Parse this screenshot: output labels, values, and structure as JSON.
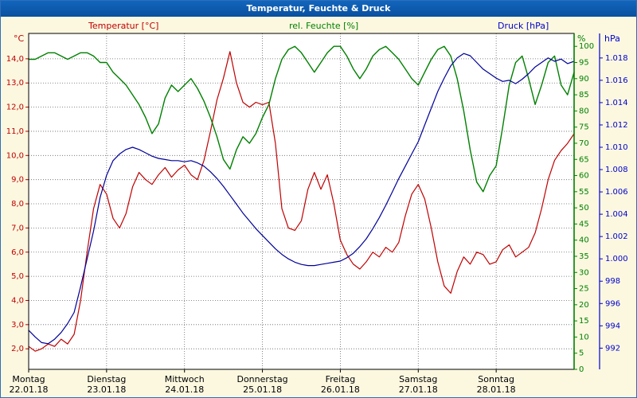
{
  "title_bar": {
    "title": "Temperatur, Feuchte & Druck"
  },
  "legend": {
    "temperature": "Temperatur [°C]",
    "humidity": "rel. Feuchte [%]",
    "pressure": "Druck [hPa]"
  },
  "colors": {
    "temperature": "#c00000",
    "humidity": "#008000",
    "pressure": "#0000cc",
    "pressure_line": "#000099",
    "title_bar_bg": "#0a58ac",
    "page_background": "#fcf8e0",
    "plot_background": "#ffffff",
    "grid": "#666666",
    "axis": "#000000"
  },
  "axes": {
    "temperature": {
      "unit": "°C",
      "scale": {
        "min": 1.15,
        "max": 15.05
      },
      "ticks": [
        {
          "v": 14,
          "label": "14,0"
        },
        {
          "v": 13,
          "label": "13,0"
        },
        {
          "v": 12,
          "label": "12,0"
        },
        {
          "v": 11,
          "label": "11,0"
        },
        {
          "v": 10,
          "label": "10,0"
        },
        {
          "v": 9,
          "label": "9,0"
        },
        {
          "v": 8,
          "label": "8,0"
        },
        {
          "v": 7,
          "label": "7,0"
        },
        {
          "v": 6,
          "label": "6,0"
        },
        {
          "v": 5,
          "label": "5,0"
        },
        {
          "v": 4,
          "label": "4,0"
        },
        {
          "v": 3,
          "label": "3,0"
        },
        {
          "v": 2,
          "label": "2,0"
        }
      ]
    },
    "humidity": {
      "unit": "%",
      "scale": {
        "min": 0,
        "max": 104
      },
      "ticks": [
        {
          "v": 100,
          "label": "100"
        },
        {
          "v": 95,
          "label": "95"
        },
        {
          "v": 90,
          "label": "90"
        },
        {
          "v": 85,
          "label": "85"
        },
        {
          "v": 80,
          "label": "80"
        },
        {
          "v": 75,
          "label": "75"
        },
        {
          "v": 70,
          "label": "70"
        },
        {
          "v": 65,
          "label": "65"
        },
        {
          "v": 60,
          "label": "60"
        },
        {
          "v": 55,
          "label": "55"
        },
        {
          "v": 50,
          "label": "50"
        },
        {
          "v": 45,
          "label": "45"
        },
        {
          "v": 40,
          "label": "40"
        },
        {
          "v": 35,
          "label": "35"
        },
        {
          "v": 30,
          "label": "30"
        },
        {
          "v": 25,
          "label": "25"
        },
        {
          "v": 20,
          "label": "20"
        },
        {
          "v": 15,
          "label": "15"
        },
        {
          "v": 10,
          "label": "10"
        },
        {
          "v": 5,
          "label": "5"
        },
        {
          "v": 0,
          "label": "0"
        }
      ]
    },
    "pressure": {
      "unit": "hPa",
      "scale": {
        "min": 990.1,
        "max": 1020.2
      },
      "ticks": [
        {
          "v": 1018,
          "label": "1.018"
        },
        {
          "v": 1016,
          "label": "1.016"
        },
        {
          "v": 1014,
          "label": "1.014"
        },
        {
          "v": 1012,
          "label": "1.012"
        },
        {
          "v": 1010,
          "label": "1.010"
        },
        {
          "v": 1008,
          "label": "1.008"
        },
        {
          "v": 1006,
          "label": "1.006"
        },
        {
          "v": 1004,
          "label": "1.004"
        },
        {
          "v": 1002,
          "label": "1.002"
        },
        {
          "v": 1000,
          "label": "1.000"
        },
        {
          "v": 998,
          "label": "998"
        },
        {
          "v": 996,
          "label": "996"
        },
        {
          "v": 994,
          "label": "994"
        },
        {
          "v": 992,
          "label": "992"
        }
      ]
    },
    "x": {
      "days": [
        {
          "name": "Montag",
          "date": "22.01.18"
        },
        {
          "name": "Dienstag",
          "date": "23.01.18"
        },
        {
          "name": "Mittwoch",
          "date": "24.01.18"
        },
        {
          "name": "Donnerstag",
          "date": "25.01.18"
        },
        {
          "name": "Freitag",
          "date": "26.01.18"
        },
        {
          "name": "Samstag",
          "date": "27.01.18"
        },
        {
          "name": "Sonntag",
          "date": "28.01.18"
        }
      ]
    }
  },
  "chart_data": {
    "type": "line",
    "title": "Temperatur, Feuchte & Druck",
    "x_unit": "hours from Montag 22.01.18 00:00",
    "x_step_hours": 2,
    "x_max_hours": 168,
    "x_tick_labels": [
      "Montag 22.01.18",
      "Dienstag 23.01.18",
      "Mittwoch 24.01.18",
      "Donnerstag 25.01.18",
      "Freitag 26.01.18",
      "Samstag 27.01.18",
      "Sonntag 28.01.18"
    ],
    "legend_position": "top",
    "grid": "dotted",
    "series": [
      {
        "name": "Temperatur [°C]",
        "axis": "temperature",
        "color": "#c00000",
        "axis_range": [
          2,
          14
        ],
        "values": [
          2.1,
          1.9,
          2.0,
          2.2,
          2.1,
          2.4,
          2.2,
          2.6,
          4.0,
          6.0,
          7.8,
          8.8,
          8.4,
          7.4,
          7.0,
          7.6,
          8.7,
          9.3,
          9.0,
          8.8,
          9.2,
          9.5,
          9.1,
          9.4,
          9.6,
          9.2,
          9.0,
          9.8,
          11.0,
          12.3,
          13.2,
          14.3,
          13.0,
          12.2,
          12.0,
          12.2,
          12.1,
          12.2,
          10.5,
          7.8,
          7.0,
          6.9,
          7.3,
          8.6,
          9.3,
          8.6,
          9.2,
          8.0,
          6.5,
          5.9,
          5.5,
          5.3,
          5.6,
          6.0,
          5.8,
          6.2,
          6.0,
          6.4,
          7.5,
          8.4,
          8.8,
          8.2,
          7.0,
          5.6,
          4.6,
          4.3,
          5.2,
          5.8,
          5.5,
          6.0,
          5.9,
          5.5,
          5.6,
          6.1,
          6.3,
          5.8,
          6.0,
          6.2,
          6.8,
          7.8,
          9.0,
          9.8,
          10.2,
          10.5,
          10.9
        ]
      },
      {
        "name": "rel. Feuchte [%]",
        "axis": "humidity",
        "color": "#008000",
        "axis_range": [
          0,
          100
        ],
        "values": [
          96,
          96,
          97,
          98,
          98,
          97,
          96,
          97,
          98,
          98,
          97,
          95,
          95,
          92,
          90,
          88,
          85,
          82,
          78,
          73,
          76,
          84,
          88,
          86,
          88,
          90,
          87,
          83,
          78,
          72,
          65,
          62,
          68,
          72,
          70,
          73,
          78,
          82,
          90,
          96,
          99,
          100,
          98,
          95,
          92,
          95,
          98,
          100,
          100,
          97,
          93,
          90,
          93,
          97,
          99,
          100,
          98,
          96,
          93,
          90,
          88,
          92,
          96,
          99,
          100,
          97,
          90,
          80,
          68,
          58,
          55,
          60,
          63,
          75,
          88,
          95,
          97,
          90,
          82,
          88,
          95,
          97,
          88,
          85,
          92
        ]
      },
      {
        "name": "Druck [hPa]",
        "axis": "pressure",
        "color": "#000099",
        "axis_range": [
          992,
          1018
        ],
        "values": [
          993.6,
          993.0,
          992.5,
          992.4,
          992.8,
          993.4,
          994.2,
          995.2,
          997.5,
          1000.0,
          1002.5,
          1005.5,
          1007.5,
          1008.8,
          1009.4,
          1009.8,
          1010.0,
          1009.8,
          1009.5,
          1009.2,
          1009.0,
          1008.9,
          1008.8,
          1008.8,
          1008.7,
          1008.8,
          1008.6,
          1008.3,
          1007.8,
          1007.2,
          1006.5,
          1005.7,
          1004.9,
          1004.1,
          1003.4,
          1002.7,
          1002.1,
          1001.5,
          1000.9,
          1000.4,
          1000.0,
          999.7,
          999.5,
          999.4,
          999.4,
          999.5,
          999.6,
          999.7,
          999.8,
          1000.1,
          1000.5,
          1001.1,
          1001.8,
          1002.7,
          1003.7,
          1004.8,
          1006.0,
          1007.2,
          1008.3,
          1009.4,
          1010.5,
          1012.0,
          1013.5,
          1015.0,
          1016.2,
          1017.3,
          1018.0,
          1018.4,
          1018.2,
          1017.6,
          1017.0,
          1016.6,
          1016.2,
          1015.9,
          1016.0,
          1015.7,
          1016.1,
          1016.6,
          1017.2,
          1017.6,
          1018.0,
          1017.7,
          1017.9,
          1017.5,
          1017.7
        ]
      }
    ]
  }
}
